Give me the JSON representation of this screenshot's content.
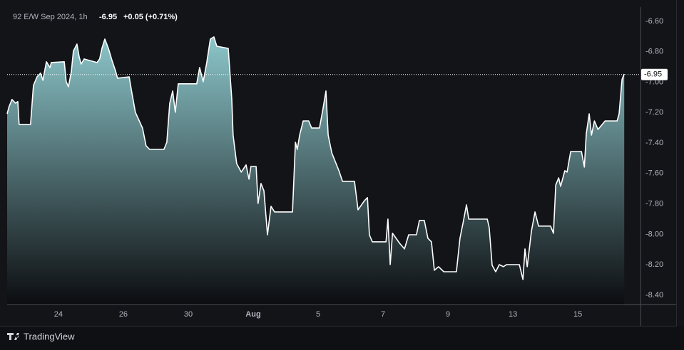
{
  "chart_data": {
    "type": "area",
    "header": {
      "title": "92 E/W Sep 2024, 1h",
      "change": "+0.05 (+0.71%)"
    },
    "brand": "TradingView",
    "last_value": {
      "value": -6.95,
      "label": "-6.95"
    },
    "color": "#ffffff",
    "area_colors": [
      "#8cc6ca",
      "#0c0d10"
    ],
    "xlim": [
      -1.58,
      17.93
    ],
    "ylim": [
      -8.461,
      -6.507
    ],
    "xticks": [
      {
        "value": 0,
        "label": "24"
      },
      {
        "value": 2,
        "label": "26"
      },
      {
        "value": 4,
        "label": "30"
      },
      {
        "value": 6,
        "label": "Aug",
        "bold": true
      },
      {
        "value": 8,
        "label": "5"
      },
      {
        "value": 10,
        "label": "7"
      },
      {
        "value": 12,
        "label": "9"
      },
      {
        "value": 14,
        "label": "13"
      },
      {
        "value": 16,
        "label": "15"
      }
    ],
    "yticks": [
      {
        "value": -6.6,
        "label": "-6.60"
      },
      {
        "value": -6.8,
        "label": "-6.80"
      },
      {
        "value": -7.0,
        "label": "-7.00"
      },
      {
        "value": -7.2,
        "label": "-7.20"
      },
      {
        "value": -7.4,
        "label": "-7.40"
      },
      {
        "value": -7.6,
        "label": "-7.60"
      },
      {
        "value": -7.8,
        "label": "-7.80"
      },
      {
        "value": -8.0,
        "label": "-8.00"
      },
      {
        "value": -8.2,
        "label": "-8.20"
      },
      {
        "value": -8.4,
        "label": "-8.40"
      }
    ],
    "x": [
      -1.58,
      -1.52,
      -1.43,
      -1.32,
      -1.25,
      -1.21,
      -0.86,
      -0.77,
      -0.66,
      -0.55,
      -0.48,
      -0.37,
      -0.26,
      -0.22,
      0.18,
      0.24,
      0.31,
      0.4,
      0.46,
      0.57,
      0.64,
      0.7,
      0.79,
      1.19,
      1.27,
      1.34,
      1.43,
      1.54,
      1.65,
      1.76,
      1.82,
      2.18,
      2.26,
      2.37,
      2.59,
      2.7,
      2.81,
      3.25,
      3.34,
      3.43,
      3.52,
      3.6,
      3.69,
      4.26,
      4.35,
      4.46,
      4.57,
      4.68,
      4.79,
      4.88,
      5.23,
      5.34,
      5.38,
      5.49,
      5.63,
      5.78,
      5.87,
      5.93,
      6.09,
      6.15,
      6.24,
      6.33,
      6.44,
      6.55,
      6.66,
      7.21,
      7.3,
      7.36,
      7.43,
      7.54,
      7.71,
      7.8,
      8.04,
      8.13,
      8.24,
      8.31,
      8.42,
      8.64,
      8.75,
      9.12,
      9.23,
      9.43,
      9.52,
      9.58,
      9.67,
      10.09,
      10.15,
      10.22,
      10.29,
      10.51,
      10.66,
      10.79,
      11.03,
      11.12,
      11.27,
      11.38,
      11.49,
      11.58,
      11.71,
      11.87,
      12.26,
      12.37,
      12.48,
      12.57,
      12.64,
      13.21,
      13.27,
      13.36,
      13.47,
      13.58,
      13.71,
      13.8,
      14.2,
      14.31,
      14.37,
      14.44,
      14.57,
      14.68,
      14.79,
      15.16,
      15.25,
      15.32,
      15.41,
      15.47,
      15.6,
      15.67,
      15.78,
      16.11,
      16.2,
      16.26,
      16.35,
      16.42,
      16.51,
      16.62,
      16.84,
      17.21,
      17.27,
      17.36,
      17.43
    ],
    "values": [
      -7.208,
      -7.161,
      -7.114,
      -7.138,
      -7.128,
      -7.278,
      -7.278,
      -7.021,
      -6.965,
      -6.941,
      -6.988,
      -6.866,
      -6.904,
      -6.871,
      -6.866,
      -6.997,
      -7.03,
      -6.927,
      -6.796,
      -6.75,
      -6.834,
      -6.881,
      -6.848,
      -6.871,
      -6.848,
      -6.778,
      -6.717,
      -6.778,
      -6.857,
      -6.927,
      -6.974,
      -6.965,
      -7.068,
      -7.198,
      -7.301,
      -7.418,
      -7.442,
      -7.442,
      -7.395,
      -7.138,
      -7.058,
      -7.198,
      -7.011,
      -7.011,
      -6.904,
      -6.997,
      -6.871,
      -6.717,
      -6.703,
      -6.764,
      -6.778,
      -7.114,
      -7.348,
      -7.535,
      -7.591,
      -7.544,
      -7.638,
      -7.554,
      -7.554,
      -7.797,
      -7.666,
      -7.713,
      -8.003,
      -7.816,
      -7.853,
      -7.853,
      -7.395,
      -7.442,
      -7.348,
      -7.255,
      -7.255,
      -7.301,
      -7.301,
      -7.198,
      -7.058,
      -7.348,
      -7.465,
      -7.582,
      -7.652,
      -7.652,
      -7.839,
      -7.778,
      -7.759,
      -8.003,
      -8.049,
      -8.049,
      -7.9,
      -8.199,
      -7.993,
      -8.059,
      -8.096,
      -8.003,
      -8.003,
      -7.909,
      -7.909,
      -8.026,
      -8.049,
      -8.236,
      -8.213,
      -8.246,
      -8.246,
      -8.026,
      -7.909,
      -7.806,
      -7.9,
      -7.9,
      -7.956,
      -8.204,
      -8.246,
      -8.199,
      -8.213,
      -8.199,
      -8.199,
      -8.297,
      -8.096,
      -8.213,
      -7.979,
      -7.853,
      -7.946,
      -7.946,
      -7.993,
      -7.675,
      -7.629,
      -7.685,
      -7.582,
      -7.591,
      -7.456,
      -7.456,
      -7.558,
      -7.339,
      -7.208,
      -7.348,
      -7.255,
      -7.311,
      -7.255,
      -7.255,
      -7.208,
      -6.983,
      -6.946
    ]
  }
}
